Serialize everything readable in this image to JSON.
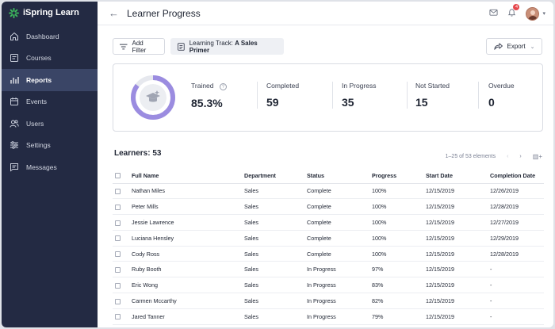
{
  "colors": {
    "sidebar_bg": "#232a43",
    "active_item_bg": "#3a4566",
    "brand_green": "#3dbd5d",
    "ring_purple": "#9b8ce0"
  },
  "app": {
    "name": "iSpring Learn"
  },
  "sidebar": {
    "items": [
      {
        "label": "Dashboard",
        "icon": "home-icon"
      },
      {
        "label": "Courses",
        "icon": "courses-icon"
      },
      {
        "label": "Reports",
        "icon": "reports-icon",
        "active": true
      },
      {
        "label": "Events",
        "icon": "calendar-icon"
      },
      {
        "label": "Users",
        "icon": "users-icon"
      },
      {
        "label": "Settings",
        "icon": "settings-icon"
      },
      {
        "label": "Messages",
        "icon": "messages-icon"
      }
    ]
  },
  "header": {
    "title": "Learner Progress",
    "notification_count": "4"
  },
  "toolbar": {
    "add_filter": "Add Filter",
    "track_prefix": "Learning Track:",
    "track_name": "A Sales Primer",
    "export": "Export"
  },
  "stats": {
    "trained_label": "Trained",
    "trained_value": "85.3%",
    "trained_fraction": 0.853,
    "completed_label": "Completed",
    "completed_value": "59",
    "in_progress_label": "In Progress",
    "in_progress_value": "35",
    "not_started_label": "Not Started",
    "not_started_value": "15",
    "overdue_label": "Overdue",
    "overdue_value": "0"
  },
  "table": {
    "title": "Learners: 53",
    "pagination": "1–25 of 53 elements",
    "columns": [
      "Full Name",
      "Department",
      "Status",
      "Progress",
      "Start Date",
      "Completion Date"
    ],
    "rows": [
      [
        "Nathan Miles",
        "Sales",
        "Complete",
        "100%",
        "12/15/2019",
        "12/26/2019"
      ],
      [
        "Peter Mills",
        "Sales",
        "Complete",
        "100%",
        "12/15/2019",
        "12/28/2019"
      ],
      [
        "Jessie Lawrence",
        "Sales",
        "Complete",
        "100%",
        "12/15/2019",
        "12/27/2019"
      ],
      [
        "Luciana Hensley",
        "Sales",
        "Complete",
        "100%",
        "12/15/2019",
        "12/29/2019"
      ],
      [
        "Cody Ross",
        "Sales",
        "Complete",
        "100%",
        "12/15/2019",
        "12/28/2019"
      ],
      [
        "Ruby Booth",
        "Sales",
        "In Progress",
        "97%",
        "12/15/2019",
        "-"
      ],
      [
        "Eric Wong",
        "Sales",
        "In Progress",
        "83%",
        "12/15/2019",
        "-"
      ],
      [
        "Carmen Mccarthy",
        "Sales",
        "In Progress",
        "82%",
        "12/15/2019",
        "-"
      ],
      [
        "Jared Tanner",
        "Sales",
        "In Progress",
        "79%",
        "12/15/2019",
        "-"
      ]
    ]
  }
}
